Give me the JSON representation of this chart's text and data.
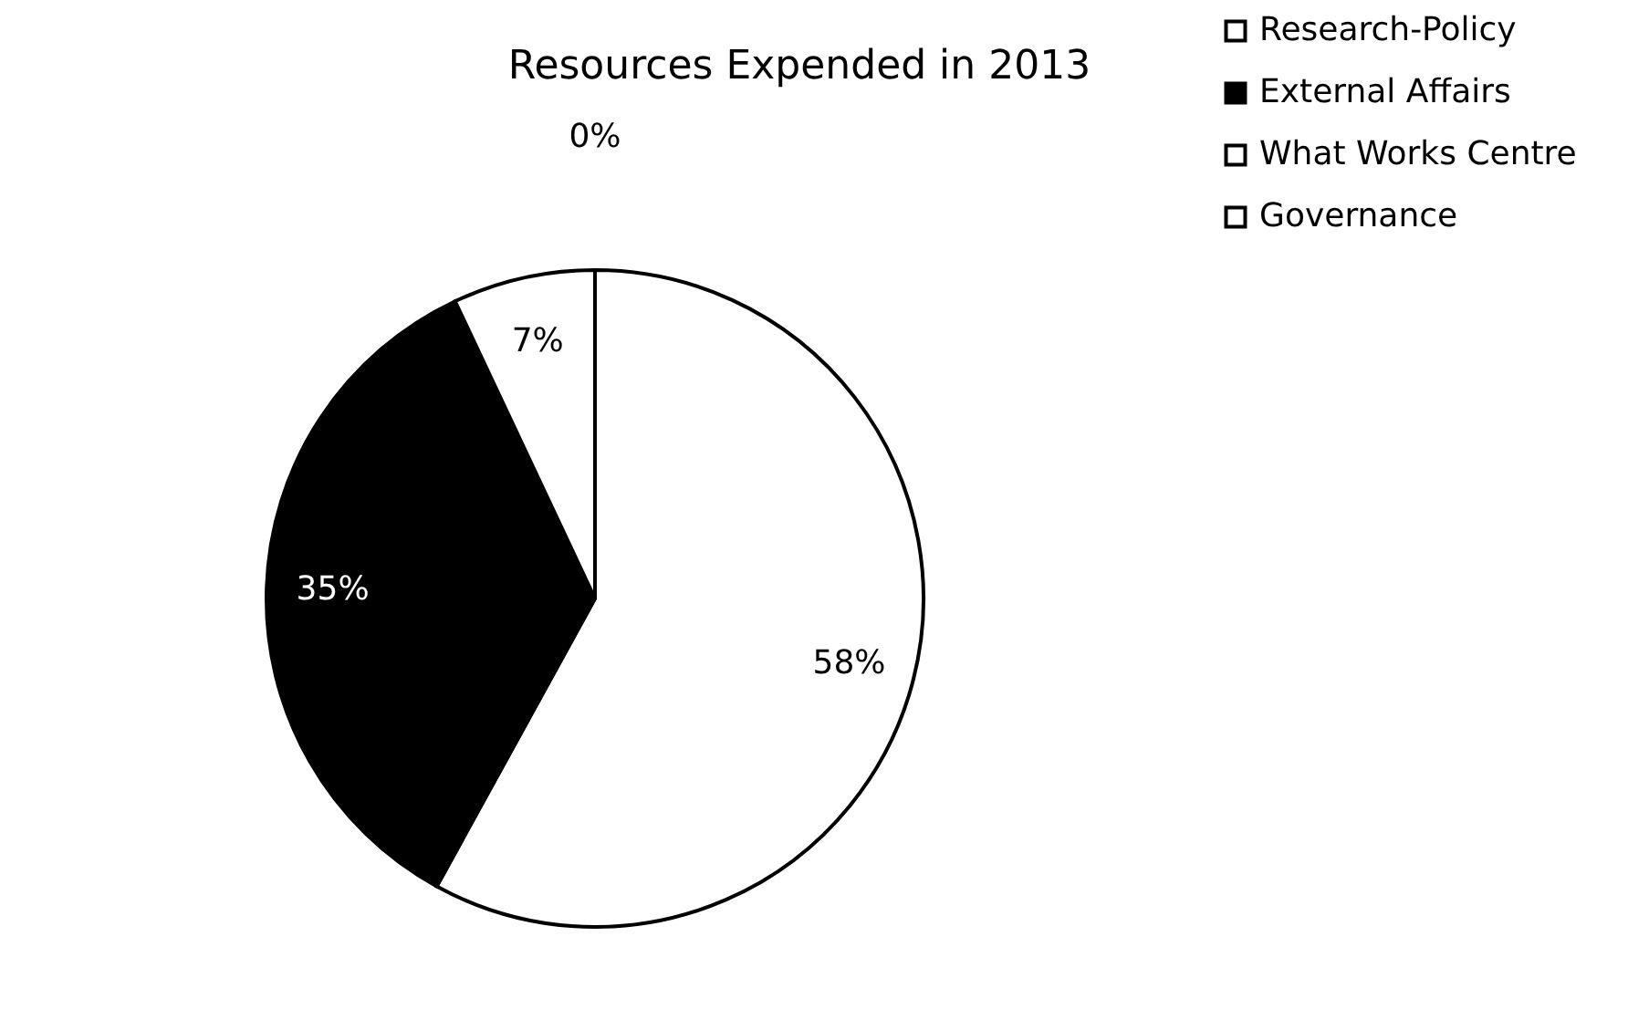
{
  "chart_data": {
    "type": "pie",
    "title": "Resources Expended in 2013",
    "categories": [
      "Research-Policy",
      "External Affairs",
      "What Works Centre",
      "Governance"
    ],
    "values": [
      58,
      35,
      7,
      0
    ],
    "colors": [
      "#ffffff",
      "#000000",
      "#ffffff",
      "#ffffff"
    ],
    "value_labels": [
      "58%",
      "35%",
      "7%",
      "0%"
    ],
    "legend": "right"
  }
}
